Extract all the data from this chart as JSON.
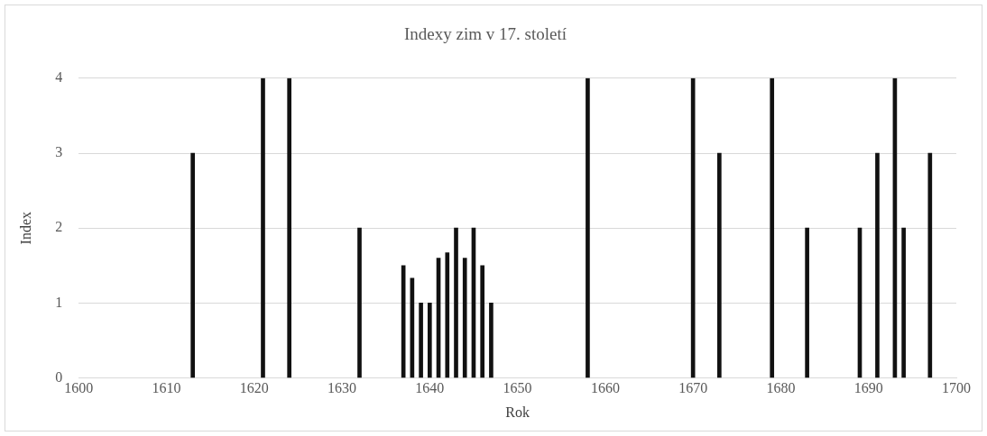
{
  "chart_data": {
    "type": "bar",
    "title": "Indexy zim v 17. století",
    "xlabel": "Rok",
    "ylabel": "Index",
    "x": [
      1613,
      1621,
      1624,
      1632,
      1637,
      1638,
      1639,
      1640,
      1641,
      1642,
      1643,
      1644,
      1645,
      1646,
      1647,
      1658,
      1670,
      1673,
      1679,
      1683,
      1689,
      1691,
      1693,
      1694,
      1697
    ],
    "values": [
      3,
      4,
      4,
      2,
      1.5,
      1.33,
      1,
      1,
      1.6,
      1.67,
      2,
      1.6,
      2,
      1.5,
      1,
      4,
      4,
      3,
      4,
      2,
      2,
      3,
      4,
      2,
      3
    ],
    "color": "#111111",
    "xlim": [
      1600,
      1700
    ],
    "xticks": [
      1600,
      1610,
      1620,
      1630,
      1640,
      1650,
      1660,
      1670,
      1680,
      1690,
      1700
    ],
    "ylim": [
      0,
      4
    ],
    "yticks": [
      0,
      1,
      2,
      3,
      4
    ],
    "grid": "y",
    "legend": false
  }
}
